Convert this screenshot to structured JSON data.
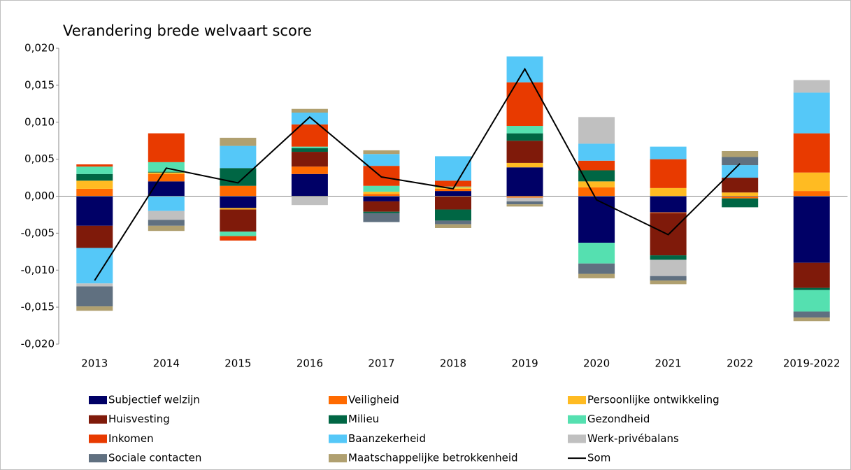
{
  "chart_data": {
    "type": "stacked_bar",
    "title": "Verandering brede welvaart score",
    "categories": [
      "2013",
      "2014",
      "2015",
      "2016",
      "2017",
      "2018",
      "2019",
      "2020",
      "2021",
      "2022",
      "2019-2022"
    ],
    "ylim": [
      -0.02,
      0.02
    ],
    "yticks": [
      {
        "value": -0.02,
        "label": "-0,020"
      },
      {
        "value": -0.015,
        "label": "-0,015"
      },
      {
        "value": -0.01,
        "label": "-0,010"
      },
      {
        "value": -0.005,
        "label": "-0,005"
      },
      {
        "value": 0,
        "label": "0,000"
      },
      {
        "value": 0.005,
        "label": "0,005"
      },
      {
        "value": 0.01,
        "label": "0,010"
      },
      {
        "value": 0.015,
        "label": "0,015"
      },
      {
        "value": 0.02,
        "label": "0,020"
      }
    ],
    "series": [
      {
        "name": "Subjectief welzijn",
        "color": "#000066",
        "values": [
          -0.004,
          0.002,
          -0.0016,
          0.003,
          -0.0007,
          0.0007,
          0.0039,
          -0.0063,
          -0.0022,
          0,
          -0.009
        ]
      },
      {
        "name": "Veiligheid",
        "color": "#ff6a00",
        "values": [
          0.001,
          0.001,
          0.0014,
          0.001,
          0.0003,
          0.0003,
          -0.0002,
          0.0012,
          -0.0001,
          -0.0003,
          0.0007
        ]
      },
      {
        "name": "Persoonlijke ontwikkeling",
        "color": "#ffbb22",
        "values": [
          0.0011,
          0.0002,
          -0.0002,
          0,
          0.0003,
          0.0002,
          0.0006,
          0.0008,
          0.0011,
          0.0005,
          0.0025
        ]
      },
      {
        "name": "Huisvesting",
        "color": "#7f1a0a",
        "values": [
          -0.003,
          0,
          -0.003,
          0.002,
          -0.0014,
          -0.0018,
          0.003,
          0,
          -0.0057,
          0.002,
          -0.0034
        ]
      },
      {
        "name": "Milieu",
        "color": "#006644",
        "values": [
          0.0009,
          0.0001,
          0.0024,
          0.0005,
          -0.0002,
          -0.0015,
          0.001,
          0.0015,
          -0.0006,
          -0.0012,
          -0.0003
        ]
      },
      {
        "name": "Gezondheid",
        "color": "#55e0b0",
        "values": [
          0.001,
          0.0013,
          -0.0006,
          0.0002,
          0.0008,
          0.0001,
          0.001,
          -0.0028,
          0,
          0,
          -0.0029
        ]
      },
      {
        "name": "Inkomen",
        "color": "#e83a00",
        "values": [
          0.0003,
          0.0039,
          -0.0006,
          0.003,
          0.0027,
          0.0008,
          0.0059,
          0.0013,
          0.0039,
          0,
          0.0053
        ]
      },
      {
        "name": "Baanzekerheid",
        "color": "#55c8f8",
        "values": [
          -0.0048,
          -0.002,
          0.003,
          0.0016,
          0.0016,
          0.0033,
          0.0035,
          0.0023,
          0.0017,
          0.0017,
          0.0055
        ]
      },
      {
        "name": "Werk-privébalans",
        "color": "#c0c0c0",
        "values": [
          -0.0004,
          -0.0012,
          0,
          -0.0012,
          0,
          0,
          -0.0005,
          0.0036,
          -0.0022,
          0,
          0.0017
        ]
      },
      {
        "name": "Sociale contacten",
        "color": "#607080",
        "values": [
          -0.0027,
          -0.0008,
          0,
          0,
          -0.0012,
          -0.0005,
          -0.0004,
          -0.0014,
          -0.0006,
          0.0011,
          -0.0008
        ]
      },
      {
        "name": "Maatschappelijke betrokkenheid",
        "color": "#b0a070",
        "values": [
          -0.0006,
          -0.0007,
          0.0011,
          0.0005,
          0.0005,
          -0.0005,
          -0.0003,
          -0.0006,
          -0.0005,
          0.0008,
          -0.0005
        ]
      },
      {
        "name": "Som",
        "color": "#000000",
        "type": "line",
        "values": [
          -0.0114,
          0.0038,
          0.0018,
          0.0107,
          0.0026,
          0.001,
          0.0172,
          -0.0005,
          -0.0052,
          0.0044,
          null
        ]
      }
    ]
  }
}
